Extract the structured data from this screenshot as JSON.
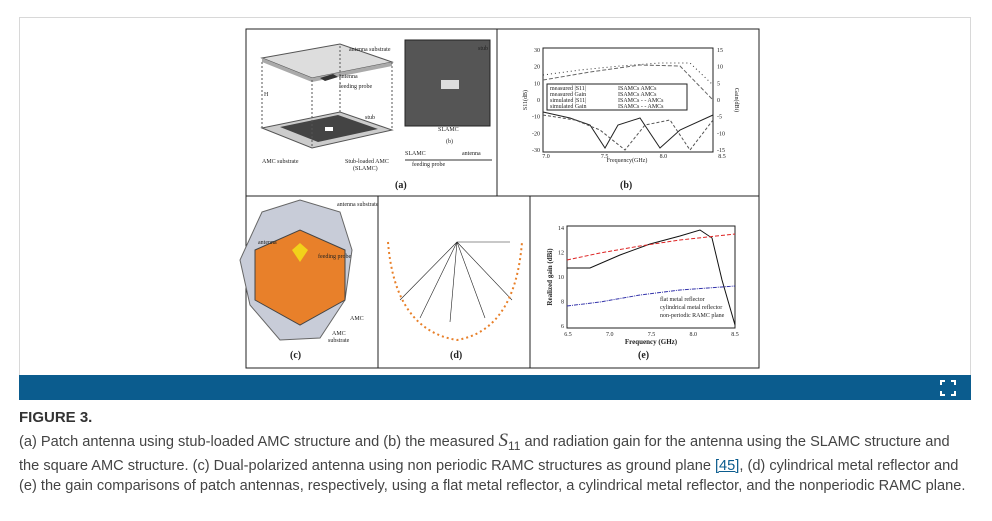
{
  "figure": {
    "panel_a": {
      "label": "(a)",
      "texts": [
        "antenna substrate",
        "antenna",
        "feeding probe",
        "H",
        "stub",
        "AMC substrate",
        "Stub-loaded AMC",
        "(SLAMC)"
      ]
    },
    "panel_b": {
      "label": "(b)",
      "inset_texts": [
        "stub",
        "SLAMC",
        "(b)",
        "SLAMC",
        "antenna",
        "feeding probe"
      ],
      "y_label": "S11(dB)",
      "y2_label": "Gain(dBi)",
      "x_label": "Frequency(GHz)",
      "y_ticks": [
        "30",
        "20",
        "10",
        "0",
        "-10",
        "-20",
        "-30"
      ],
      "y2_ticks": [
        "15",
        "10",
        "5",
        "0",
        "-5",
        "-10",
        "-15"
      ],
      "x_ticks": [
        "7.0",
        "7.5",
        "8.0",
        "8.5"
      ],
      "legend": [
        "measured |S11|",
        "measured Gain",
        "ISAMCs  AMCs",
        "ISAMCs  AMCs",
        "simulated |S11|",
        "simulated Gain",
        "ISAMCs - - AMCs",
        "ISAMCs - - AMCs"
      ]
    },
    "panel_c": {
      "label": "(c)",
      "texts": [
        "antenna substrate",
        "antenna",
        "feeding probe",
        "AMC",
        "AMC",
        "substrate"
      ]
    },
    "panel_d": {
      "label": "(d)"
    },
    "panel_e": {
      "label": "(e)",
      "y_label": "Realized gain (dBi)",
      "x_label": "Frequency (GHz)",
      "y_ticks": [
        "14",
        "12",
        "10",
        "8",
        "6"
      ],
      "x_ticks": [
        "6.5",
        "7.0",
        "7.5",
        "8.0",
        "8.5"
      ],
      "legend": [
        "flat metal reflector",
        "cylindrical metal reflector",
        "non-periodic RAMC plane"
      ]
    }
  },
  "caption": {
    "label": "FIGURE 3.",
    "text_before": "(a) Patch antenna using stub-loaded AMC structure and (b) the measured ",
    "symbol": "S",
    "subscript": "11",
    "text_middle": " and radiation gain for the antenna using the SLAMC structure and the square AMC structure. (c) Dual-polarized antenna using non periodic RAMC structures as ground plane ",
    "reference": "[45]",
    "text_after": ", (d) cylindrical metal reflector and (e) the gain comparisons of patch antennas, respectively, using a flat metal reflector, a cylindrical metal reflector, and the nonperiodic RAMC plane."
  }
}
